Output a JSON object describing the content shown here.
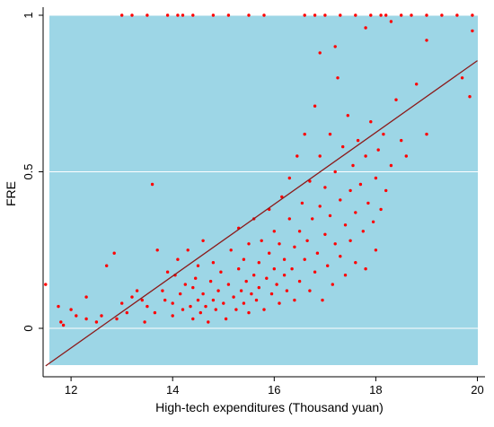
{
  "chart_data": {
    "type": "scatter",
    "title": "",
    "xlabel": "High-tech expenditures (Thousand yuan)",
    "ylabel": "FRE",
    "xlim": [
      11.45,
      20.15
    ],
    "ylim": [
      -0.12,
      1.0
    ],
    "x_ticks": [
      12,
      14,
      16,
      18,
      20
    ],
    "x_tick_labels": [
      "12",
      "14",
      "16",
      "18",
      "20"
    ],
    "y_ticks": [
      0,
      0.5,
      1
    ],
    "y_tick_labels": [
      "0",
      "0.5",
      "1"
    ],
    "grid": "horizontal",
    "legend": "none",
    "fit_line": {
      "x": [
        11.5,
        20.0
      ],
      "y": [
        -0.12,
        0.855
      ]
    },
    "series": [
      {
        "points": [
          [
            11.5,
            0.14
          ],
          [
            11.75,
            0.07
          ],
          [
            11.8,
            0.02
          ],
          [
            11.85,
            0.01
          ],
          [
            12.0,
            0.06
          ],
          [
            12.1,
            0.04
          ],
          [
            12.3,
            0.1
          ],
          [
            12.3,
            0.03
          ],
          [
            12.5,
            0.02
          ],
          [
            12.6,
            0.04
          ],
          [
            12.7,
            0.2
          ],
          [
            12.85,
            0.24
          ],
          [
            12.9,
            0.03
          ],
          [
            13.0,
            0.08
          ],
          [
            13.1,
            0.05
          ],
          [
            13.2,
            0.1
          ],
          [
            13.3,
            0.12
          ],
          [
            13.4,
            0.09
          ],
          [
            13.45,
            0.02
          ],
          [
            13.5,
            0.07
          ],
          [
            13.6,
            0.46
          ],
          [
            13.65,
            0.05
          ],
          [
            13.7,
            0.25
          ],
          [
            13.8,
            0.12
          ],
          [
            13.85,
            0.09
          ],
          [
            13.9,
            0.18
          ],
          [
            14.0,
            0.08
          ],
          [
            14.0,
            0.04
          ],
          [
            14.05,
            0.17
          ],
          [
            14.1,
            0.22
          ],
          [
            14.15,
            0.11
          ],
          [
            14.2,
            0.06
          ],
          [
            14.25,
            0.14
          ],
          [
            14.3,
            0.25
          ],
          [
            14.35,
            0.07
          ],
          [
            14.4,
            0.13
          ],
          [
            14.4,
            0.03
          ],
          [
            14.45,
            0.16
          ],
          [
            14.5,
            0.2
          ],
          [
            14.5,
            0.09
          ],
          [
            14.55,
            0.05
          ],
          [
            14.6,
            0.28
          ],
          [
            14.6,
            0.11
          ],
          [
            14.65,
            0.07
          ],
          [
            14.7,
            0.02
          ],
          [
            14.75,
            0.15
          ],
          [
            14.8,
            0.09
          ],
          [
            14.8,
            0.21
          ],
          [
            14.85,
            0.06
          ],
          [
            14.9,
            0.12
          ],
          [
            14.95,
            0.18
          ],
          [
            15.0,
            0.08
          ],
          [
            15.05,
            0.03
          ],
          [
            15.1,
            0.14
          ],
          [
            15.15,
            0.25
          ],
          [
            15.2,
            0.1
          ],
          [
            15.25,
            0.06
          ],
          [
            15.3,
            0.19
          ],
          [
            15.3,
            0.32
          ],
          [
            15.35,
            0.12
          ],
          [
            15.4,
            0.08
          ],
          [
            15.4,
            0.22
          ],
          [
            15.45,
            0.15
          ],
          [
            15.5,
            0.05
          ],
          [
            15.5,
            0.27
          ],
          [
            15.55,
            0.11
          ],
          [
            15.6,
            0.17
          ],
          [
            15.6,
            0.35
          ],
          [
            15.65,
            0.09
          ],
          [
            15.7,
            0.21
          ],
          [
            15.7,
            0.13
          ],
          [
            15.75,
            0.28
          ],
          [
            15.8,
            0.06
          ],
          [
            15.85,
            0.16
          ],
          [
            15.9,
            0.24
          ],
          [
            15.9,
            0.38
          ],
          [
            15.95,
            0.11
          ],
          [
            16.0,
            0.19
          ],
          [
            16.0,
            0.31
          ],
          [
            16.05,
            0.14
          ],
          [
            16.1,
            0.08
          ],
          [
            16.1,
            0.27
          ],
          [
            16.15,
            0.42
          ],
          [
            16.2,
            0.17
          ],
          [
            16.2,
            0.22
          ],
          [
            16.25,
            0.12
          ],
          [
            16.3,
            0.35
          ],
          [
            16.3,
            0.48
          ],
          [
            16.35,
            0.19
          ],
          [
            16.4,
            0.26
          ],
          [
            16.4,
            0.09
          ],
          [
            16.45,
            0.55
          ],
          [
            16.5,
            0.31
          ],
          [
            16.5,
            0.15
          ],
          [
            16.55,
            0.4
          ],
          [
            16.6,
            0.22
          ],
          [
            16.6,
            0.62
          ],
          [
            16.65,
            0.28
          ],
          [
            16.7,
            0.12
          ],
          [
            16.7,
            0.47
          ],
          [
            16.75,
            0.35
          ],
          [
            16.8,
            0.18
          ],
          [
            16.8,
            0.71
          ],
          [
            16.85,
            0.24
          ],
          [
            16.9,
            0.39
          ],
          [
            16.9,
            0.55
          ],
          [
            16.95,
            0.09
          ],
          [
            17.0,
            0.3
          ],
          [
            17.0,
            0.45
          ],
          [
            17.05,
            0.2
          ],
          [
            17.1,
            0.62
          ],
          [
            17.1,
            0.36
          ],
          [
            17.15,
            0.14
          ],
          [
            17.2,
            0.5
          ],
          [
            17.2,
            0.27
          ],
          [
            17.25,
            0.8
          ],
          [
            17.3,
            0.41
          ],
          [
            17.3,
            0.23
          ],
          [
            17.35,
            0.58
          ],
          [
            17.4,
            0.33
          ],
          [
            17.4,
            0.17
          ],
          [
            17.45,
            0.68
          ],
          [
            17.5,
            0.44
          ],
          [
            17.5,
            0.28
          ],
          [
            17.55,
            0.52
          ],
          [
            17.6,
            0.37
          ],
          [
            17.6,
            0.21
          ],
          [
            17.65,
            0.6
          ],
          [
            17.7,
            0.46
          ],
          [
            17.75,
            0.31
          ],
          [
            17.8,
            0.55
          ],
          [
            17.8,
            0.19
          ],
          [
            17.85,
            0.4
          ],
          [
            17.9,
            0.66
          ],
          [
            17.95,
            0.34
          ],
          [
            18.0,
            0.48
          ],
          [
            18.0,
            0.25
          ],
          [
            18.05,
            0.57
          ],
          [
            18.1,
            0.38
          ],
          [
            18.15,
            0.62
          ],
          [
            18.2,
            0.44
          ],
          [
            18.3,
            0.52
          ],
          [
            18.4,
            0.73
          ],
          [
            18.5,
            0.6
          ],
          [
            18.6,
            0.55
          ],
          [
            18.8,
            0.78
          ],
          [
            19.0,
            0.62
          ],
          [
            19.7,
            0.8
          ],
          [
            19.85,
            0.74
          ],
          [
            19.9,
            0.95
          ],
          [
            13.0,
            1.0
          ],
          [
            13.2,
            1.0
          ],
          [
            13.5,
            1.0
          ],
          [
            13.9,
            1.0
          ],
          [
            14.1,
            1.0
          ],
          [
            14.2,
            1.0
          ],
          [
            14.4,
            1.0
          ],
          [
            14.8,
            1.0
          ],
          [
            15.1,
            1.0
          ],
          [
            15.5,
            1.0
          ],
          [
            15.8,
            1.0
          ],
          [
            16.6,
            1.0
          ],
          [
            16.8,
            1.0
          ],
          [
            17.0,
            1.0
          ],
          [
            17.3,
            1.0
          ],
          [
            17.6,
            1.0
          ],
          [
            17.9,
            1.0
          ],
          [
            18.1,
            1.0
          ],
          [
            18.2,
            1.0
          ],
          [
            18.5,
            1.0
          ],
          [
            18.7,
            1.0
          ],
          [
            19.0,
            1.0
          ],
          [
            19.3,
            1.0
          ],
          [
            19.6,
            1.0
          ],
          [
            19.9,
            1.0
          ],
          [
            16.9,
            0.88
          ],
          [
            17.2,
            0.9
          ],
          [
            17.8,
            0.96
          ],
          [
            18.3,
            0.98
          ],
          [
            19.0,
            0.92
          ]
        ]
      }
    ]
  },
  "colors": {
    "plot_background": "#9dd6e6",
    "point": "#ff0000",
    "fit_line": "#8b1a1a",
    "grid": "#ffffff"
  }
}
